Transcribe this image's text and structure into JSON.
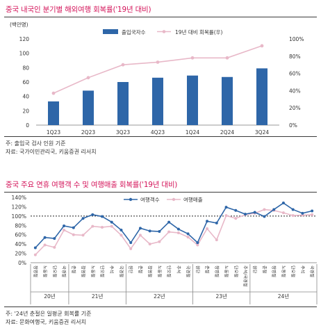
{
  "chart1_title": "중국 내국인 분기별 해외여행 회복률('19년 대비)",
  "chart1_notes": [
    "주: 출입국 검사 인원 기준",
    "자료: 국가이민관리국, 키움증권 리서치"
  ],
  "chart2_title": "중국 주요 연휴 여행객 수 및 여행매출 회복률('19년 대비)",
  "chart2_notes": [
    "주: '24년 춘절은 일평균 회복률 기준",
    "자료: 문화여행국, 키움증권 리서치"
  ],
  "colors": {
    "bar": "#2e66a8",
    "pink": "#e8b8c8",
    "title": "#d4145a",
    "blue_line": "#2e66a8"
  },
  "chart_data": [
    {
      "type": "bar",
      "title": "",
      "unit_label": "(백만명)",
      "categories": [
        "1Q23",
        "2Q23",
        "3Q23",
        "4Q23",
        "1Q24",
        "2Q24",
        "3Q24"
      ],
      "series": [
        {
          "name": "출입국자수",
          "type": "bar",
          "axis": "left",
          "values": [
            33,
            48,
            60,
            66,
            69,
            67,
            79
          ]
        },
        {
          "name": "19년 대비 회복률(우)",
          "type": "line",
          "axis": "right",
          "values": [
            37,
            55,
            70,
            73,
            78,
            78,
            92
          ]
        }
      ],
      "ylim": [
        0,
        120
      ],
      "yticks": [
        "0",
        "20",
        "40",
        "60",
        "80",
        "100",
        "120"
      ],
      "y2lim": [
        0,
        100
      ],
      "y2ticks": [
        "0%",
        "20%",
        "40%",
        "60%",
        "80%",
        "100%"
      ],
      "legend": "top",
      "grid": false
    },
    {
      "type": "line",
      "title": "",
      "categories": [
        "청명절",
        "노동절",
        "단오절",
        "국경절",
        "춘절",
        "청명절",
        "노동절",
        "단오절",
        "추석",
        "국경절",
        "원단",
        "춘절",
        "청명절",
        "노동절",
        "단오절",
        "추석",
        "국경절",
        "원단",
        "춘절",
        "청명절",
        "노동절",
        "단오절",
        "추석/국경절",
        "원단",
        "춘절",
        "청명절",
        "노동절",
        "단오절",
        "추석",
        "국경절"
      ],
      "year_groups": [
        {
          "label": "20년",
          "count": 4
        },
        {
          "label": "21년",
          "count": 6
        },
        {
          "label": "22년",
          "count": 7
        },
        {
          "label": "23년",
          "count": 6
        },
        {
          "label": "24년",
          "count": 7
        }
      ],
      "series": [
        {
          "name": "여행객수",
          "values": [
            32,
            54,
            52,
            79,
            75,
            95,
            103,
            99,
            87,
            70,
            43,
            74,
            68,
            67,
            87,
            72,
            62,
            43,
            89,
            85,
            119,
            112,
            104,
            108,
            99,
            114,
            128,
            114,
            106,
            111
          ]
        },
        {
          "name": "여행매출",
          "values": [
            17,
            38,
            33,
            70,
            60,
            59,
            78,
            76,
            78,
            59,
            30,
            59,
            40,
            45,
            66,
            64,
            55,
            38,
            73,
            49,
            101,
            95,
            103,
            106,
            114,
            112,
            107,
            101,
            102,
            103
          ]
        }
      ],
      "ylim": [
        0,
        140
      ],
      "yticks": [
        "0%",
        "20%",
        "40%",
        "60%",
        "80%",
        "100%",
        "120%",
        "140%"
      ],
      "reference_line": 100,
      "legend": "top",
      "grid": false
    }
  ]
}
